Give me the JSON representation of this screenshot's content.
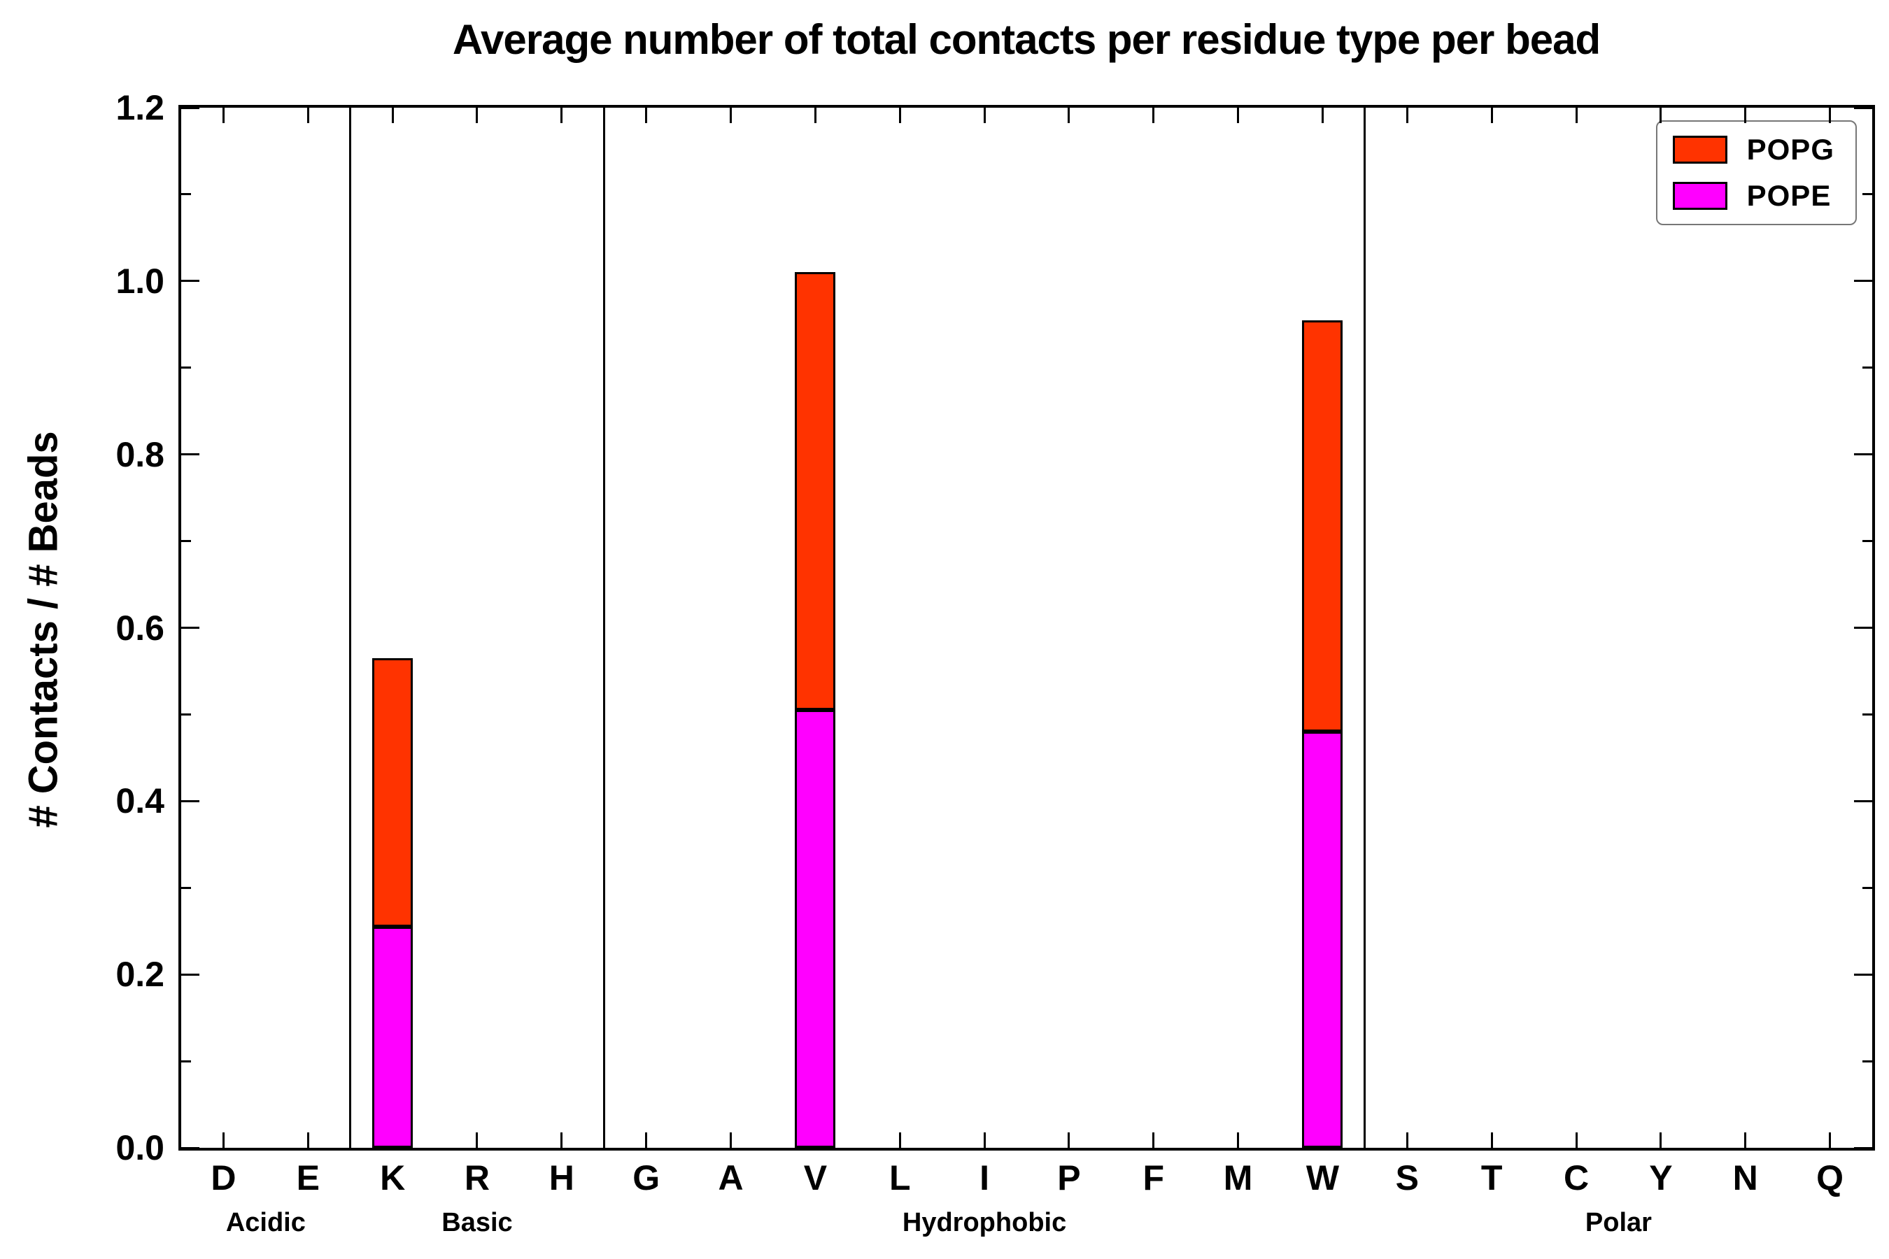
{
  "title": "Average number of total contacts per residue type per bead",
  "ylabel": "# Contacts / # Beads",
  "chart_data": {
    "type": "bar",
    "stacked": true,
    "title": "Average number of total contacts per residue type per bead",
    "xlabel": "",
    "ylabel": "# Contacts / # Beads",
    "ylim": [
      0,
      1.2
    ],
    "ytick_step_major": 0.2,
    "ytick_step_minor": 0.1,
    "grid": false,
    "legend_position": "upper right",
    "legend_order": [
      "POPG",
      "POPE"
    ],
    "groups": [
      {
        "label": "Acidic",
        "categories": [
          "D",
          "E"
        ]
      },
      {
        "label": "Basic",
        "categories": [
          "K",
          "R",
          "H"
        ]
      },
      {
        "label": "Hydrophobic",
        "categories": [
          "G",
          "A",
          "V",
          "L",
          "I",
          "P",
          "F",
          "M",
          "W"
        ]
      },
      {
        "label": "Polar",
        "categories": [
          "S",
          "T",
          "C",
          "Y",
          "N",
          "Q"
        ]
      }
    ],
    "series": [
      {
        "name": "POPE",
        "color": "#ff00ff",
        "values": {
          "D": 0,
          "E": 0,
          "K": 0.255,
          "R": 0,
          "H": 0,
          "G": 0,
          "A": 0,
          "V": 0.505,
          "L": 0,
          "I": 0,
          "P": 0,
          "F": 0,
          "M": 0,
          "W": 0.48,
          "S": 0,
          "T": 0,
          "C": 0,
          "Y": 0,
          "N": 0,
          "Q": 0
        }
      },
      {
        "name": "POPG",
        "color": "#ff3300",
        "values": {
          "D": 0,
          "E": 0,
          "K": 0.31,
          "R": 0,
          "H": 0,
          "G": 0,
          "A": 0,
          "V": 0.505,
          "L": 0,
          "I": 0,
          "P": 0,
          "F": 0,
          "M": 0,
          "W": 0.475,
          "S": 0,
          "T": 0,
          "C": 0,
          "Y": 0,
          "N": 0,
          "Q": 0
        }
      }
    ]
  }
}
